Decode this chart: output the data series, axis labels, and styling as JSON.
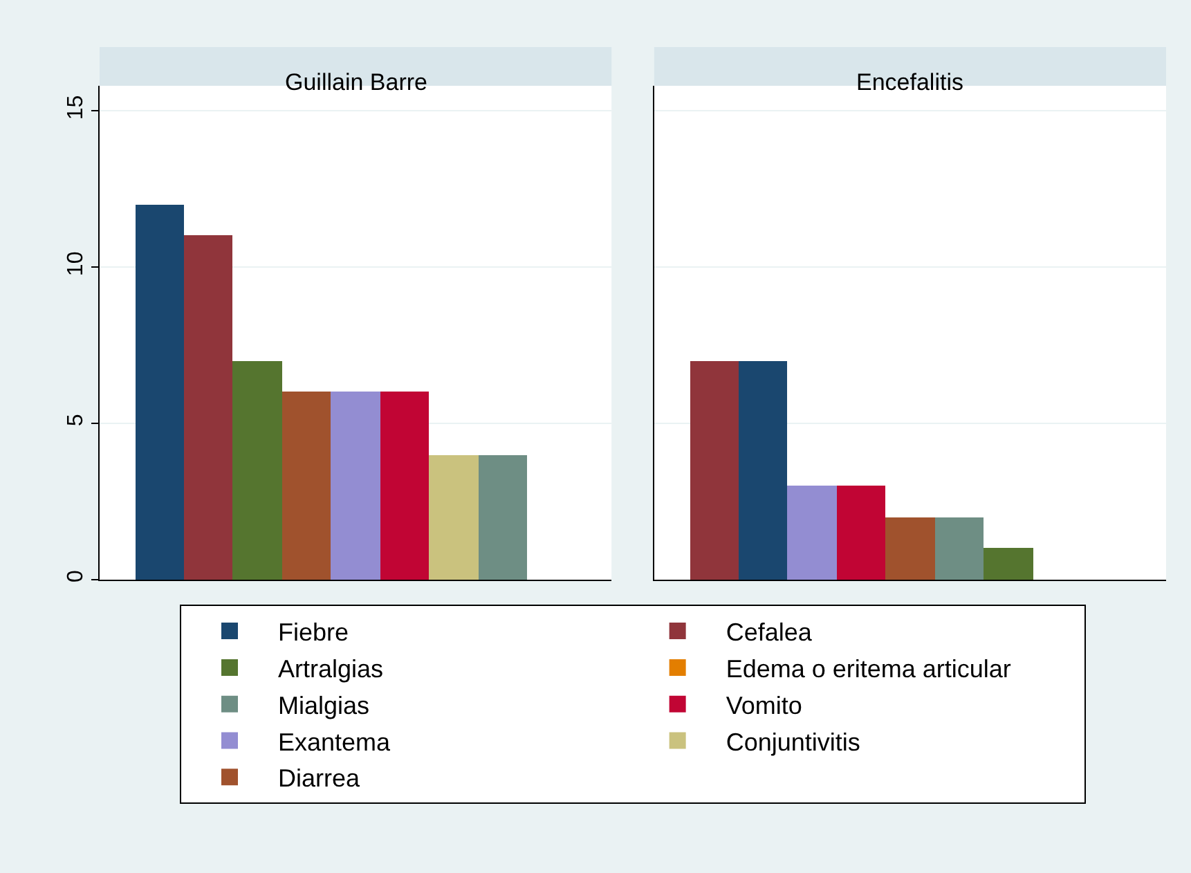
{
  "chart_data": [
    {
      "type": "bar",
      "title": "Guillain Barre",
      "categories": [
        null,
        null,
        null,
        null,
        null,
        null,
        null,
        null
      ],
      "stacked": true,
      "ylim": [
        0,
        15.8
      ],
      "yticks": [
        0,
        5,
        10,
        15
      ],
      "grid": "y",
      "legend": "bottom",
      "tick_labels": "y",
      "series": [
        {
          "name": "Fiebre",
          "color": "#1a476f",
          "values": [
            12,
            null,
            null,
            null,
            null,
            null,
            null,
            null
          ]
        },
        {
          "name": "Cefalea",
          "color": "#90353b",
          "values": [
            null,
            11,
            null,
            null,
            null,
            null,
            null,
            null
          ]
        },
        {
          "name": "Artralgias",
          "color": "#55752f",
          "values": [
            null,
            null,
            7,
            null,
            null,
            null,
            null,
            null
          ]
        },
        {
          "name": "Edema o eritema articular",
          "color": "#e37e00",
          "values": [
            null,
            null,
            null,
            null,
            null,
            null,
            null,
            null
          ]
        },
        {
          "name": "Mialgias",
          "color": "#6e8e84",
          "values": [
            null,
            null,
            null,
            null,
            null,
            null,
            null,
            4
          ]
        },
        {
          "name": "Vomito",
          "color": "#c10534",
          "values": [
            null,
            null,
            null,
            null,
            null,
            6,
            null,
            null
          ]
        },
        {
          "name": "Exantema",
          "color": "#938dd2",
          "values": [
            null,
            null,
            null,
            null,
            6,
            null,
            null,
            null
          ]
        },
        {
          "name": "Conjuntivitis",
          "color": "#cac27e",
          "values": [
            null,
            null,
            null,
            null,
            null,
            null,
            4,
            null
          ]
        },
        {
          "name": "Diarrea",
          "color": "#a0522d",
          "values": [
            null,
            null,
            null,
            6,
            null,
            null,
            null,
            null
          ]
        }
      ]
    },
    {
      "type": "bar",
      "title": "Encefalitis",
      "categories": [
        null,
        null,
        null,
        null,
        null,
        null,
        null
      ],
      "stacked": true,
      "ylim": [
        0,
        15.8
      ],
      "yticks": [
        0,
        5,
        10,
        15
      ],
      "grid": "y",
      "legend": "bottom",
      "tick_labels": false,
      "series": [
        {
          "name": "Fiebre",
          "color": "#1a476f",
          "values": [
            null,
            7,
            null,
            null,
            null,
            null,
            null
          ]
        },
        {
          "name": "Cefalea",
          "color": "#90353b",
          "values": [
            7,
            null,
            null,
            null,
            null,
            null,
            null
          ]
        },
        {
          "name": "Artralgias",
          "color": "#55752f",
          "values": [
            null,
            null,
            null,
            null,
            null,
            null,
            1
          ]
        },
        {
          "name": "Mialgias",
          "color": "#6e8e84",
          "values": [
            null,
            null,
            null,
            null,
            null,
            2,
            null
          ]
        },
        {
          "name": "Vomito",
          "color": "#c10534",
          "values": [
            null,
            null,
            null,
            3,
            null,
            null,
            null
          ]
        },
        {
          "name": "Exantema",
          "color": "#938dd2",
          "values": [
            null,
            null,
            3,
            null,
            null,
            null,
            null
          ]
        },
        {
          "name": "Conjuntivitis",
          "color": "#cac27e",
          "values": [
            null,
            null,
            null,
            null,
            null,
            null,
            null
          ]
        },
        {
          "name": "Diarrea",
          "color": "#a0522d",
          "values": [
            null,
            null,
            null,
            null,
            2,
            null,
            null
          ]
        }
      ]
    }
  ]
}
